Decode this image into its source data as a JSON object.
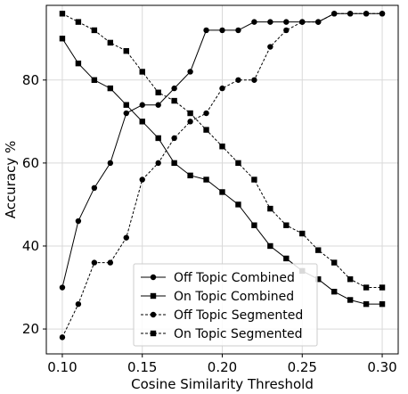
{
  "chart_data": {
    "type": "line",
    "title": "",
    "xlabel": "Cosine Similarity Threshold",
    "ylabel": "Accuracy %",
    "xlim": [
      0.09,
      0.31
    ],
    "ylim": [
      14,
      98
    ],
    "xticks": [
      0.1,
      0.15,
      0.2,
      0.25,
      0.3
    ],
    "xtick_labels": [
      "0.10",
      "0.15",
      "0.20",
      "0.25",
      "0.30"
    ],
    "yticks": [
      20,
      40,
      60,
      80
    ],
    "ytick_labels": [
      "20",
      "40",
      "60",
      "80"
    ],
    "grid": true,
    "legend_position": "lower-center",
    "x": [
      0.1,
      0.11,
      0.12,
      0.13,
      0.14,
      0.15,
      0.16,
      0.17,
      0.18,
      0.19,
      0.2,
      0.21,
      0.22,
      0.23,
      0.24,
      0.25,
      0.26,
      0.27,
      0.28,
      0.29,
      0.3
    ],
    "series": [
      {
        "name": "Off Topic Combined",
        "marker": "circle",
        "line": "solid",
        "values": [
          30,
          46,
          54,
          60,
          72,
          74,
          74,
          78,
          82,
          92,
          92,
          92,
          94,
          94,
          94,
          94,
          94,
          96,
          96,
          96,
          96
        ]
      },
      {
        "name": "On Topic Combined",
        "marker": "square",
        "line": "solid",
        "values": [
          90,
          84,
          80,
          78,
          74,
          70,
          66,
          60,
          57,
          56,
          53,
          50,
          45,
          40,
          37,
          34,
          32,
          29,
          27,
          26,
          26
        ]
      },
      {
        "name": "Off Topic Segmented",
        "marker": "circle",
        "line": "dashed",
        "values": [
          18,
          26,
          36,
          36,
          42,
          56,
          60,
          66,
          70,
          72,
          78,
          80,
          80,
          88,
          92,
          94,
          94,
          96,
          96,
          96,
          96
        ]
      },
      {
        "name": "On Topic Segmented",
        "marker": "square",
        "line": "dashed",
        "values": [
          96,
          94,
          92,
          89,
          87,
          82,
          77,
          75,
          72,
          68,
          64,
          60,
          56,
          49,
          45,
          43,
          39,
          36,
          32,
          30,
          30
        ]
      }
    ]
  },
  "colors": {
    "line": "#000000",
    "grid": "#d9d9d9",
    "axis": "#000000",
    "background": "#ffffff"
  }
}
